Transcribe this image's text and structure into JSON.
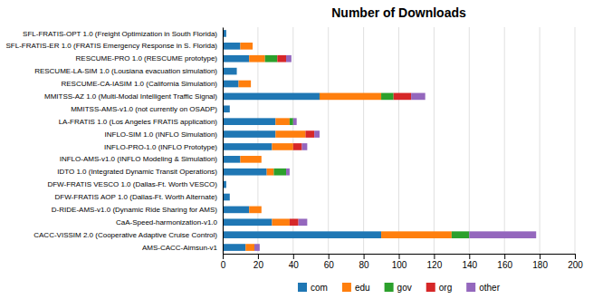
{
  "chart_data": {
    "type": "bar",
    "orientation": "horizontal",
    "stacked": true,
    "title": "Number of Downloads",
    "categories": [
      "SFL-FRATIS-OPT 1.0 (Freight Optimization in South Florida)",
      "SFL-FRATIS-ER 1.0 (FRATIS Emergency Response in S. Florida)",
      "RESCUME-PRO 1.0 (RESCUME prototype)",
      "RESCUME-LA-SIM 1.0 (Lousiana evacuation simulation)",
      "RESCUME-CA-IASIM 1.0 (California Simulation)",
      "MMITSS-AZ 1.0 (Multi-Modal Intelligent Traffic Signal)",
      "MMITSS-AMS-v1.0 (not currently on OSADP)",
      "LA-FRATIS 1.0 (Los Angeles FRATIS application)",
      "INFLO-SIM 1.0 (INFLO Simulation)",
      "INFLO-PRO-1.0 (INFLO Prototype)",
      "INFLO-AMS-v1.0 (INFLO Modeling & Simulation)",
      "IDTO 1.0 (Integrated Dynamic Transit Operations)",
      "DFW-FRATIS VESCO 1.0 (Dallas-Ft. Worth VESCO)",
      "DFW-FRATIS AOP 1.0 (Dallas-Ft. Worth Alternate)",
      "D-RIDE-AMS-v1.0 (Dynamic Ride Sharing for AMS)",
      "CaA-Speed-harmonization-v1.0",
      "CACC-VISSIM 2.0 (Cooperative Adaptive Cruise Control)",
      "AMS-CACC-Aimsun-v1"
    ],
    "series": [
      {
        "name": "com",
        "values": [
          2,
          10,
          15,
          8,
          9,
          55,
          4,
          30,
          30,
          28,
          10,
          25,
          2,
          4,
          15,
          28,
          90,
          13
        ]
      },
      {
        "name": "edu",
        "values": [
          0,
          7,
          9,
          0,
          7,
          35,
          0,
          8,
          17,
          12,
          12,
          4,
          0,
          0,
          7,
          10,
          40,
          5
        ]
      },
      {
        "name": "gov",
        "values": [
          0,
          0,
          7,
          0,
          0,
          7,
          0,
          2,
          0,
          0,
          0,
          7,
          0,
          0,
          0,
          0,
          10,
          0
        ]
      },
      {
        "name": "org",
        "values": [
          0,
          0,
          5,
          0,
          0,
          10,
          0,
          0,
          5,
          5,
          0,
          0,
          0,
          0,
          0,
          5,
          0,
          0
        ]
      },
      {
        "name": "other",
        "values": [
          0,
          0,
          3,
          0,
          0,
          8,
          0,
          2,
          3,
          3,
          0,
          2,
          0,
          0,
          0,
          5,
          38,
          3
        ]
      }
    ],
    "xlim": [
      0,
      200
    ],
    "xticks": [
      0,
      20,
      40,
      60,
      80,
      100,
      120,
      140,
      160,
      180,
      200
    ],
    "grid": true,
    "legend": "bottom"
  }
}
